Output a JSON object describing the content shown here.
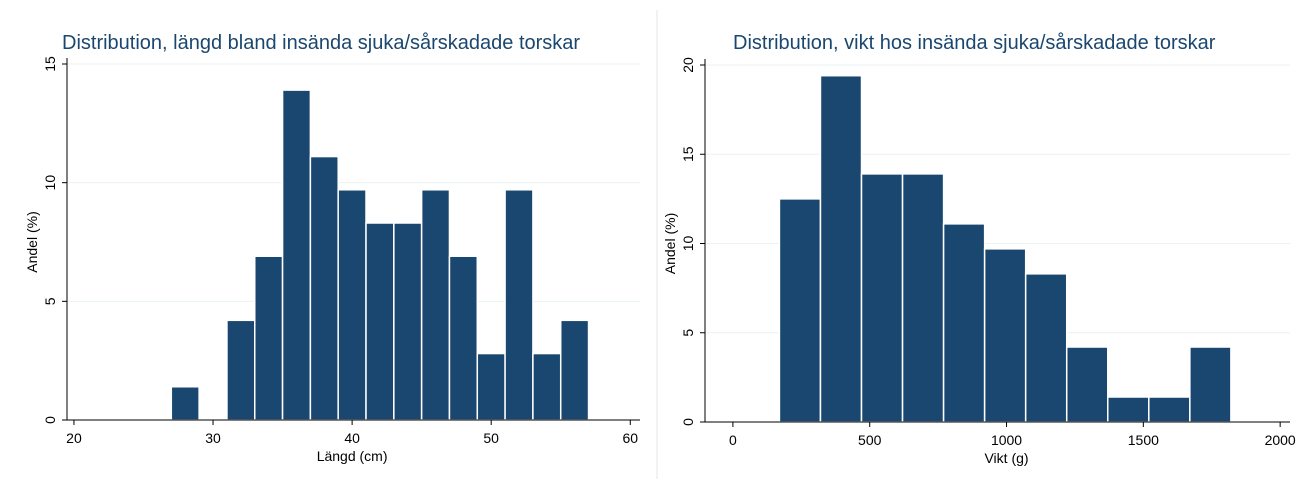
{
  "chart_data": [
    {
      "type": "histogram",
      "title": "Distribution, längd bland insända sjuka/sårskadade torskar",
      "xlabel": "Längd (cm)",
      "ylabel": "Andel (%)",
      "color": "#1a476f",
      "grid": true,
      "bins": [
        27,
        29,
        31,
        33,
        35,
        37,
        39,
        41,
        43,
        45,
        47,
        49,
        51,
        53,
        55,
        57
      ],
      "values": [
        1.4,
        0,
        4.2,
        6.9,
        13.9,
        11.1,
        9.7,
        8.3,
        8.3,
        9.7,
        6.9,
        2.8,
        9.7,
        2.8,
        4.2
      ],
      "xlim": [
        19.5,
        60.7
      ],
      "xticks": [
        20,
        30,
        40,
        50,
        60
      ],
      "ylim": [
        0,
        15
      ],
      "yticks": [
        0,
        5,
        10,
        15
      ]
    },
    {
      "type": "histogram",
      "title": "Distribution, vikt hos insända sjuka/sårskadade torskar",
      "xlabel": "Vikt (g)",
      "ylabel": "Andel (%)",
      "color": "#1a476f",
      "grid": true,
      "bins": [
        170,
        320,
        470,
        620,
        770,
        920,
        1070,
        1220,
        1370,
        1520,
        1670,
        1820
      ],
      "values": [
        12.5,
        19.4,
        13.9,
        13.9,
        11.1,
        9.7,
        8.3,
        4.2,
        1.4,
        1.4,
        4.2
      ],
      "xlim": [
        -102,
        2036
      ],
      "xticks": [
        0,
        500,
        1000,
        1500,
        2000
      ],
      "ylim": [
        0,
        20
      ],
      "yticks": [
        0,
        5,
        10,
        15,
        20
      ]
    }
  ]
}
